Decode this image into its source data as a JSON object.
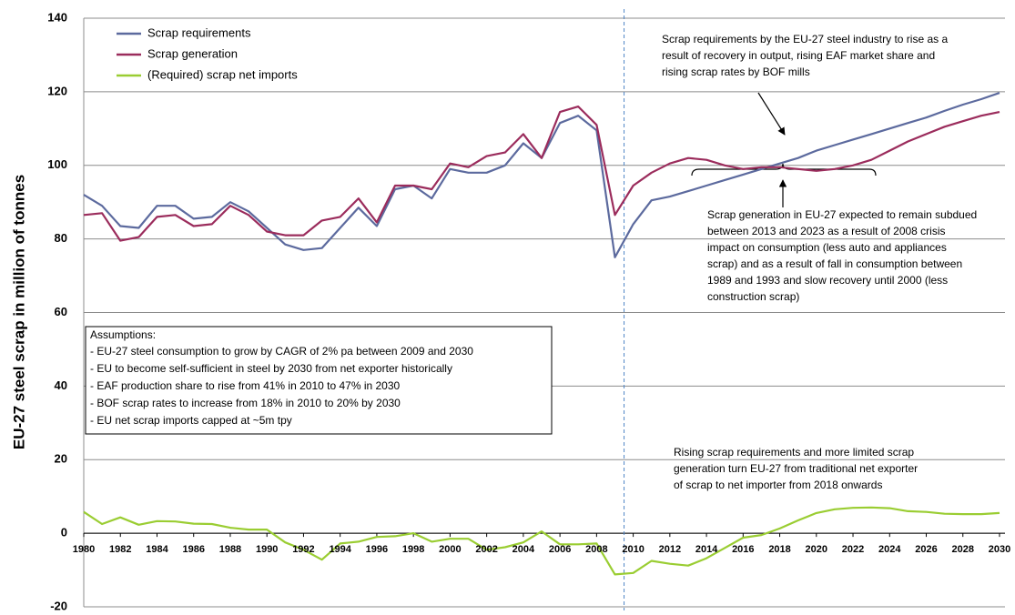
{
  "chart_data": {
    "type": "line",
    "y_label": "EU-27 steel scrap in million of tonnes",
    "x": [
      1980,
      1981,
      1982,
      1983,
      1984,
      1985,
      1986,
      1987,
      1988,
      1989,
      1990,
      1991,
      1992,
      1993,
      1994,
      1995,
      1996,
      1997,
      1998,
      1999,
      2000,
      2001,
      2002,
      2003,
      2004,
      2005,
      2006,
      2007,
      2008,
      2009,
      2010,
      2011,
      2012,
      2013,
      2014,
      2015,
      2016,
      2017,
      2018,
      2019,
      2020,
      2021,
      2022,
      2023,
      2024,
      2025,
      2026,
      2027,
      2028,
      2029,
      2030
    ],
    "series": [
      {
        "name": "Scrap requirements",
        "color": "#5c6a9e",
        "values": [
          92,
          89,
          83.5,
          83,
          89,
          89,
          85.5,
          86,
          90,
          87.5,
          83,
          78.5,
          77,
          77.5,
          83,
          88.5,
          83.5,
          93.5,
          94.5,
          91,
          99,
          98,
          98,
          100,
          106,
          102,
          111.5,
          113.5,
          109.5,
          75,
          84,
          90.5,
          91.5,
          93,
          94.5,
          96,
          97.5,
          99,
          100.5,
          102,
          104,
          105.5,
          107,
          108.5,
          110,
          111.5,
          113,
          114.8,
          116.5,
          118,
          119.7
        ]
      },
      {
        "name": "Scrap generation",
        "color": "#9b2c5c",
        "values": [
          86.5,
          87,
          79.5,
          80.5,
          86,
          86.5,
          83.5,
          84,
          89,
          86.5,
          82,
          81,
          81,
          85,
          86,
          91,
          84.5,
          94.5,
          94.5,
          93.5,
          100.5,
          99.5,
          102.5,
          103.5,
          108.5,
          102,
          114.5,
          116,
          111,
          86.5,
          94.5,
          98,
          100.5,
          102,
          101.5,
          100,
          99,
          99.5,
          99.5,
          99,
          98.5,
          99,
          100,
          101.5,
          104,
          106.5,
          108.5,
          110.5,
          112,
          113.5,
          114.5
        ]
      },
      {
        "name": "(Required) scrap net imports",
        "color": "#9acd32",
        "values": [
          5.8,
          2.5,
          4.3,
          2.3,
          3.3,
          3.2,
          2.6,
          2.5,
          1.5,
          1,
          1,
          -2.5,
          -4.5,
          -7.2,
          -2.8,
          -2.3,
          -1,
          -0.8,
          0,
          -2.3,
          -1.5,
          -1.5,
          -4.5,
          -3.8,
          -2.5,
          0.5,
          -3,
          -3,
          -2.8,
          -11.2,
          -10.8,
          -7.5,
          -8.3,
          -8.8,
          -6.8,
          -4,
          -1.2,
          -0.5,
          1.3,
          3.5,
          5.5,
          6.5,
          6.9,
          7,
          6.8,
          6,
          5.8,
          5.3,
          5.2,
          5.2,
          5.5
        ]
      }
    ],
    "xlim": [
      1980,
      2030
    ],
    "xticks": [
      1980,
      1982,
      1984,
      1986,
      1988,
      1990,
      1992,
      1994,
      1996,
      1998,
      2000,
      2002,
      2004,
      2006,
      2008,
      2010,
      2012,
      2014,
      2016,
      2018,
      2020,
      2022,
      2024,
      2026,
      2028,
      2030
    ],
    "ylim": [
      -20,
      140
    ],
    "yticks": [
      -20,
      0,
      20,
      40,
      60,
      80,
      100,
      120,
      140
    ],
    "grid": true,
    "vline_x": 2009.5,
    "annotations": [
      {
        "lines": [
          "Scrap requirements by the EU-27 steel industry to rise as a",
          "result of recovery in output, rising EAF market share and",
          "rising scrap rates by BOF mills"
        ]
      },
      {
        "lines": [
          "Scrap generation in EU-27 expected to remain subdued",
          "between 2013 and 2023 as a result of 2008 crisis",
          "impact on consumption (less auto and appliances",
          "scrap) and as a result of fall in consumption between",
          "1989 and 1993 and slow recovery until 2000 (less",
          "construction scrap)"
        ]
      },
      {
        "lines": [
          "Rising scrap requirements and more limited scrap",
          "generation turn EU-27 from traditional net exporter",
          "of scrap to net importer from  2018 onwards"
        ]
      }
    ],
    "assumptions": {
      "title": "Assumptions:",
      "lines": [
        "- EU-27 steel consumption to grow by CAGR of 2% pa between 2009 and 2030",
        "- EU to become self-sufficient in steel by 2030 from net exporter historically",
        "- EAF production share to rise from 41% in 2010 to 47% in 2030",
        "- BOF scrap rates to increase from 18% in 2010 to 20% by 2030",
        "- EU net scrap imports capped at ~5m tpy"
      ]
    }
  }
}
